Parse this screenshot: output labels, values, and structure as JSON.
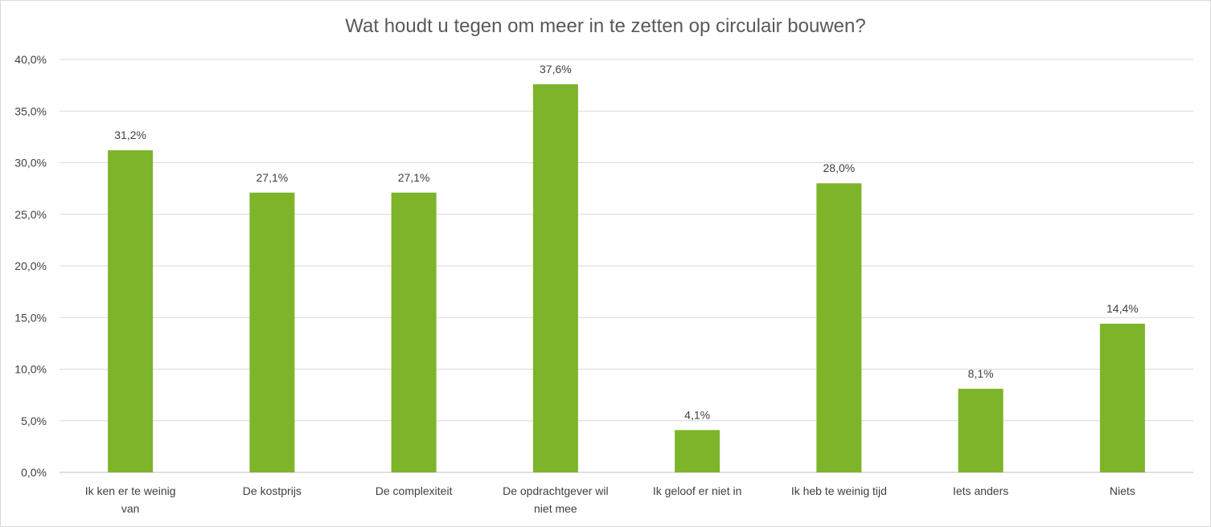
{
  "chart_data": {
    "type": "bar",
    "title": "Wat houdt u tegen om meer in te zetten op circulair bouwen?",
    "categories": [
      "Ik ken er te weinig van",
      "De kostprijs",
      "De complexiteit",
      "De opdrachtgever wil niet mee",
      "Ik geloof er niet in",
      "Ik heb te weinig tijd",
      "Iets anders",
      "Niets"
    ],
    "values": [
      31.2,
      27.1,
      27.1,
      37.6,
      4.1,
      28.0,
      8.1,
      14.4
    ],
    "data_labels": [
      "31,2%",
      "27,1%",
      "27,1%",
      "37,6%",
      "4,1%",
      "28,0%",
      "8,1%",
      "14,4%"
    ],
    "y_ticks": [
      0,
      5,
      10,
      15,
      20,
      25,
      30,
      35,
      40
    ],
    "y_tick_labels": [
      "0,0%",
      "5,0%",
      "10,0%",
      "15,0%",
      "20,0%",
      "25,0%",
      "30,0%",
      "35,0%",
      "40,0%"
    ],
    "ylim": [
      0,
      40
    ],
    "grid": true,
    "legend": "none",
    "bar_color": "#7db42a",
    "grid_color": "#d9d9d9",
    "axis_color": "#bfbfbf"
  }
}
